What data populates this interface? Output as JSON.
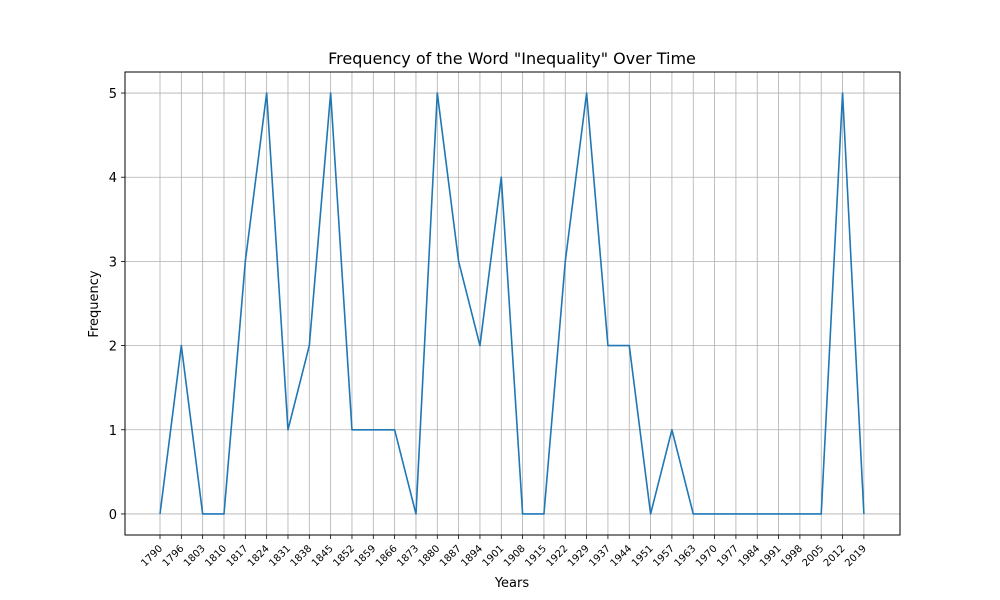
{
  "chart_data": {
    "type": "line",
    "title": "Frequency of the Word \"Inequality\" Over Time",
    "xlabel": "Years",
    "ylabel": "Frequency",
    "categories": [
      "1790",
      "1796",
      "1803",
      "1810",
      "1817",
      "1824",
      "1831",
      "1838",
      "1845",
      "1852",
      "1859",
      "1866",
      "1873",
      "1880",
      "1887",
      "1894",
      "1901",
      "1908",
      "1915",
      "1922",
      "1929",
      "1937",
      "1944",
      "1951",
      "1957",
      "1963",
      "1970",
      "1977",
      "1984",
      "1991",
      "1998",
      "2005",
      "2012",
      "2019"
    ],
    "values": [
      0,
      2,
      0,
      0,
      3,
      5,
      1,
      2,
      5,
      1,
      1,
      1,
      0,
      5,
      3,
      2,
      4,
      0,
      0,
      3,
      5,
      2,
      2,
      0,
      1,
      0,
      0,
      0,
      0,
      0,
      0,
      0,
      5,
      0
    ],
    "yticks": [
      0,
      1,
      2,
      3,
      4,
      5
    ],
    "ylim": [
      -0.25,
      5.25
    ],
    "grid": true,
    "line_color": "#1f77b4"
  }
}
